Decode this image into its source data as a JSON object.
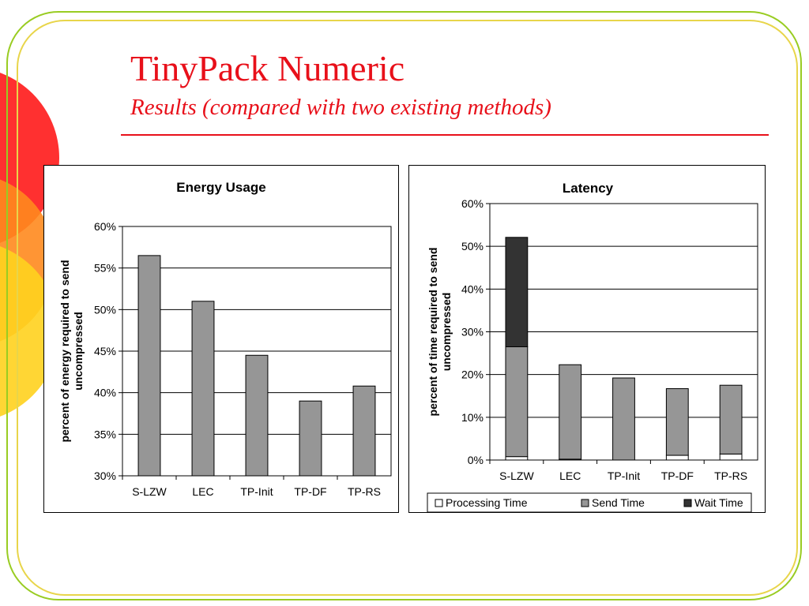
{
  "slide": {
    "title": "TinyPack Numeric",
    "subtitle": "Results (compared with two existing methods)"
  },
  "colors": {
    "accent": "#e8101a",
    "bar_gray": "#969696",
    "wait": "#333333",
    "processing": "#ffffff"
  },
  "chart_data": [
    {
      "type": "bar",
      "title": "Energy Usage",
      "ylabel": "percent of energy required to send uncompressed",
      "xlabel": "",
      "categories": [
        "S-LZW",
        "LEC",
        "TP-Init",
        "TP-DF",
        "TP-RS"
      ],
      "values": [
        56.5,
        51.0,
        44.5,
        39.0,
        40.8
      ],
      "ylim": [
        30,
        60
      ],
      "yticks": [
        "30%",
        "35%",
        "40%",
        "45%",
        "50%",
        "55%",
        "60%"
      ],
      "grid": true,
      "legend": "none"
    },
    {
      "type": "bar",
      "stacked": true,
      "title": "Latency",
      "ylabel": "percent of time required to send uncompressed",
      "xlabel": "",
      "categories": [
        "S-LZW",
        "LEC",
        "TP-Init",
        "TP-DF",
        "TP-RS"
      ],
      "series": [
        {
          "name": "Processing Time",
          "values": [
            0.8,
            0.2,
            0.0,
            1.1,
            1.4
          ]
        },
        {
          "name": "Send Time",
          "values": [
            25.7,
            22.1,
            19.2,
            15.6,
            16.1
          ]
        },
        {
          "name": "Wait Time",
          "values": [
            25.6,
            0.0,
            0.0,
            0.0,
            0.0
          ]
        }
      ],
      "ylim": [
        0,
        60
      ],
      "yticks": [
        "0%",
        "10%",
        "20%",
        "30%",
        "40%",
        "50%",
        "60%"
      ],
      "grid": true,
      "legend": "bottom"
    }
  ]
}
